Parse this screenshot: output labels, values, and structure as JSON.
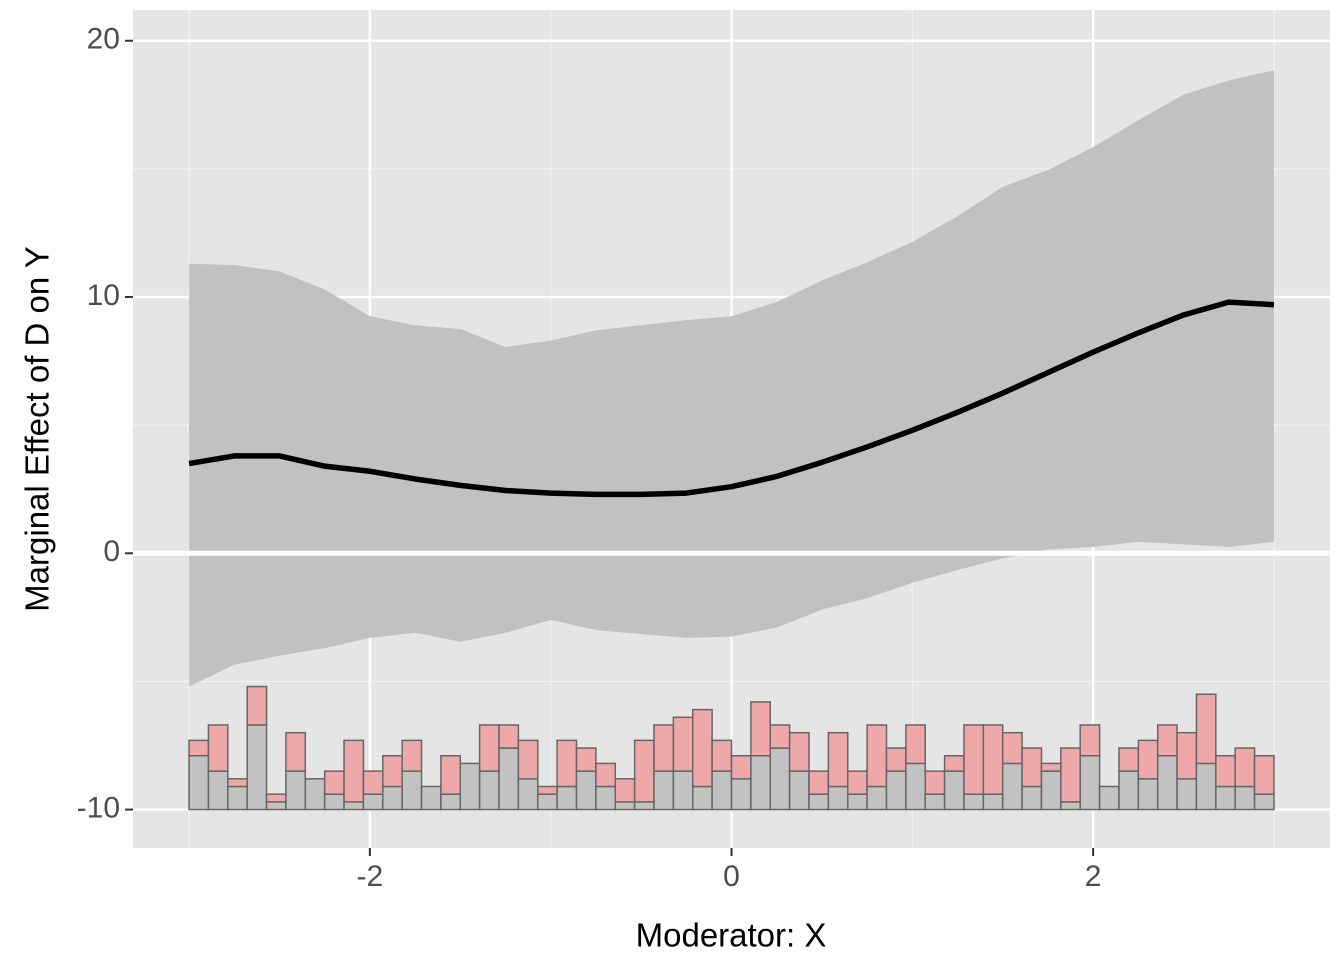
{
  "chart_data": {
    "type": "line",
    "x_label": "Moderator: X",
    "y_label": "Marginal Effect of D on Y",
    "x": [
      -3,
      -2.75,
      -2.5,
      -2.25,
      -2,
      -1.75,
      -1.5,
      -1.25,
      -1,
      -0.75,
      -0.5,
      -0.25,
      0,
      0.25,
      0.5,
      0.75,
      1,
      1.25,
      1.5,
      1.75,
      2,
      2.25,
      2.5,
      2.75,
      3
    ],
    "values": [
      3.5,
      3.8,
      3.8,
      3.4,
      3.2,
      2.9,
      2.65,
      2.45,
      2.35,
      2.3,
      2.3,
      2.35,
      2.6,
      3.0,
      3.55,
      4.15,
      4.8,
      5.5,
      6.25,
      7.05,
      7.85,
      8.6,
      9.3,
      9.8,
      9.7
    ],
    "ci_upper": [
      11.3,
      11.25,
      11.0,
      10.3,
      9.25,
      8.9,
      8.75,
      8.05,
      8.3,
      8.7,
      8.9,
      9.1,
      9.25,
      9.8,
      10.65,
      11.35,
      12.15,
      13.15,
      14.3,
      14.95,
      15.85,
      16.9,
      17.9,
      18.45,
      18.85
    ],
    "ci_lower": [
      -5.2,
      -4.35,
      -4.0,
      -3.7,
      -3.3,
      -3.1,
      -3.45,
      -3.1,
      -2.6,
      -3.0,
      -3.15,
      -3.3,
      -3.25,
      -2.9,
      -2.2,
      -1.75,
      -1.15,
      -0.65,
      -0.2,
      0.15,
      0.25,
      0.45,
      0.35,
      0.25,
      0.45
    ],
    "line_color": "#000000",
    "band_color": "#bfbfbf",
    "hline": 0,
    "histogram": {
      "series": [
        {
          "color": "#c2c2c2",
          "values": [
            2.1,
            1.5,
            0.9,
            3.3,
            0.3,
            1.5,
            1.2,
            0.6,
            0.3,
            0.6,
            0.9,
            1.5,
            0.9,
            0.6,
            1.8,
            1.5,
            2.4,
            1.2,
            0.6,
            0.9,
            1.5,
            0.9,
            0.3,
            0.3,
            1.5,
            1.5,
            0.9,
            1.5,
            1.2,
            2.1,
            2.4,
            1.5,
            0.6,
            0.9,
            0.6,
            0.9,
            1.5,
            1.8,
            0.6,
            1.5,
            0.6,
            0.6,
            1.8,
            0.9,
            1.5,
            0.3,
            2.1,
            0.9,
            1.5,
            1.2,
            2.1,
            1.2,
            1.8,
            0.9,
            0.9,
            0.6
          ]
        },
        {
          "color": "#eea8aa",
          "values": [
            0.6,
            1.8,
            0.3,
            1.5,
            0.3,
            1.5,
            0,
            0.9,
            2.4,
            0.9,
            1.2,
            1.2,
            0,
            1.5,
            0,
            1.8,
            0.9,
            1.5,
            0.3,
            1.8,
            0.9,
            0.9,
            0.9,
            2.4,
            1.8,
            2.1,
            3.0,
            1.2,
            0.9,
            2.1,
            0.9,
            1.5,
            0.9,
            2.1,
            0.9,
            2.4,
            0.9,
            1.5,
            0.9,
            0.6,
            2.7,
            2.7,
            1.2,
            1.5,
            0.3,
            2.1,
            1.2,
            0,
            0.9,
            1.5,
            1.2,
            1.8,
            2.7,
            1.2,
            1.5,
            1.5
          ]
        }
      ]
    },
    "xlim": [
      -3.31,
      3.31
    ],
    "xticks": [
      -2,
      0,
      2
    ],
    "ylim": [
      -11.5,
      21.2
    ],
    "yticks": [
      -10,
      0,
      10,
      20
    ],
    "grid": true
  }
}
